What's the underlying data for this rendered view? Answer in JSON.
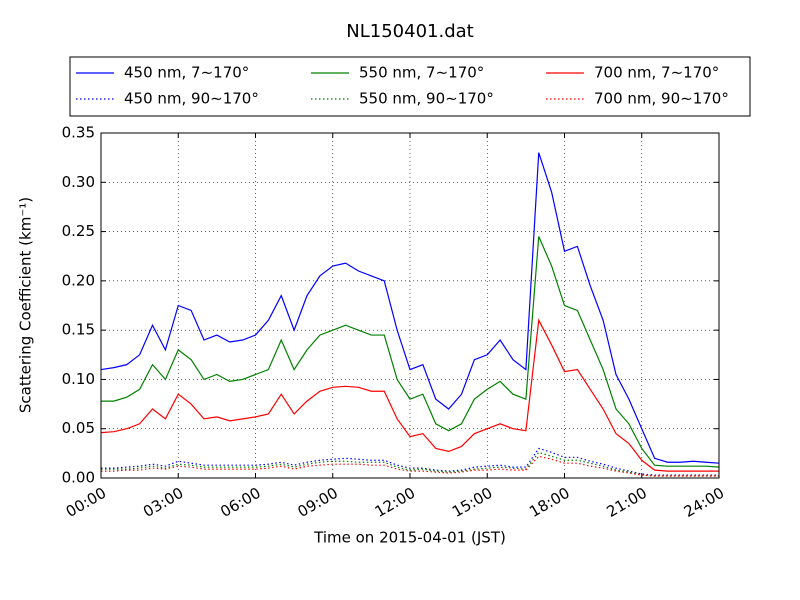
{
  "chart_data": {
    "type": "line",
    "title": "NL150401.dat",
    "xlabel": "Time on 2015-04-01 (JST)",
    "ylabel": "Scattering Coefficient (km⁻¹)",
    "x": [
      0,
      0.5,
      1,
      1.5,
      2,
      2.5,
      3,
      3.5,
      4,
      4.5,
      5,
      5.5,
      6,
      6.5,
      7,
      7.5,
      8,
      8.5,
      9,
      9.5,
      10,
      10.5,
      11,
      11.5,
      12,
      12.5,
      13,
      13.5,
      14,
      14.5,
      15,
      15.5,
      16,
      16.5,
      17,
      17.5,
      18,
      18.5,
      19,
      19.5,
      20,
      20.5,
      21,
      21.5,
      22,
      22.5,
      23,
      23.5,
      24
    ],
    "xlim": [
      0,
      24
    ],
    "xticks": [
      {
        "value": 0,
        "label": "00:00"
      },
      {
        "value": 3,
        "label": "03:00"
      },
      {
        "value": 6,
        "label": "06:00"
      },
      {
        "value": 9,
        "label": "09:00"
      },
      {
        "value": 12,
        "label": "12:00"
      },
      {
        "value": 15,
        "label": "15:00"
      },
      {
        "value": 18,
        "label": "18:00"
      },
      {
        "value": 21,
        "label": "21:00"
      },
      {
        "value": 24,
        "label": "24:00"
      }
    ],
    "ylim": [
      0,
      0.35
    ],
    "yticks": [
      {
        "value": 0,
        "label": "0.00"
      },
      {
        "value": 0.05,
        "label": "0.05"
      },
      {
        "value": 0.1,
        "label": "0.10"
      },
      {
        "value": 0.15,
        "label": "0.15"
      },
      {
        "value": 0.2,
        "label": "0.20"
      },
      {
        "value": 0.25,
        "label": "0.25"
      },
      {
        "value": 0.3,
        "label": "0.30"
      },
      {
        "value": 0.35,
        "label": "0.35"
      }
    ],
    "grid": true,
    "legend_columns": 3,
    "series": [
      {
        "name": "450 nm, 7∼170°",
        "color": "#0000ff",
        "dash": "solid",
        "values": [
          0.11,
          0.112,
          0.115,
          0.125,
          0.155,
          0.13,
          0.175,
          0.17,
          0.14,
          0.145,
          0.138,
          0.14,
          0.145,
          0.16,
          0.185,
          0.15,
          0.185,
          0.205,
          0.215,
          0.218,
          0.21,
          0.205,
          0.2,
          0.15,
          0.11,
          0.115,
          0.08,
          0.07,
          0.085,
          0.12,
          0.125,
          0.14,
          0.12,
          0.11,
          0.33,
          0.29,
          0.23,
          0.235,
          0.195,
          0.16,
          0.105,
          0.08,
          0.05,
          0.02,
          0.016,
          0.016,
          0.017,
          0.016,
          0.015
        ]
      },
      {
        "name": "450 nm, 90∼170°",
        "color": "#0000ff",
        "dash": "dotted",
        "values": [
          0.01,
          0.01,
          0.011,
          0.012,
          0.014,
          0.012,
          0.017,
          0.015,
          0.013,
          0.013,
          0.013,
          0.013,
          0.013,
          0.014,
          0.016,
          0.013,
          0.016,
          0.018,
          0.019,
          0.02,
          0.019,
          0.018,
          0.018,
          0.013,
          0.01,
          0.01,
          0.008,
          0.007,
          0.008,
          0.011,
          0.012,
          0.013,
          0.011,
          0.011,
          0.03,
          0.026,
          0.021,
          0.021,
          0.017,
          0.014,
          0.01,
          0.007,
          0.004,
          0.003,
          0.003,
          0.003,
          0.003,
          0.003,
          0.003
        ]
      },
      {
        "name": "550 nm, 7∼170°",
        "color": "#008000",
        "dash": "solid",
        "values": [
          0.078,
          0.078,
          0.082,
          0.09,
          0.115,
          0.1,
          0.13,
          0.12,
          0.1,
          0.105,
          0.098,
          0.1,
          0.105,
          0.11,
          0.14,
          0.11,
          0.13,
          0.145,
          0.15,
          0.155,
          0.15,
          0.145,
          0.145,
          0.1,
          0.08,
          0.085,
          0.055,
          0.048,
          0.055,
          0.08,
          0.09,
          0.098,
          0.085,
          0.08,
          0.245,
          0.215,
          0.175,
          0.17,
          0.14,
          0.11,
          0.07,
          0.055,
          0.03,
          0.013,
          0.012,
          0.012,
          0.012,
          0.012,
          0.011
        ]
      },
      {
        "name": "550 nm, 90∼170°",
        "color": "#008000",
        "dash": "dotted",
        "values": [
          0.009,
          0.009,
          0.009,
          0.01,
          0.012,
          0.01,
          0.014,
          0.013,
          0.011,
          0.011,
          0.011,
          0.011,
          0.011,
          0.012,
          0.014,
          0.011,
          0.014,
          0.016,
          0.017,
          0.017,
          0.016,
          0.016,
          0.016,
          0.011,
          0.008,
          0.009,
          0.007,
          0.006,
          0.007,
          0.009,
          0.01,
          0.011,
          0.01,
          0.009,
          0.026,
          0.022,
          0.018,
          0.018,
          0.015,
          0.012,
          0.008,
          0.006,
          0.003,
          0.002,
          0.002,
          0.002,
          0.002,
          0.002,
          0.002
        ]
      },
      {
        "name": "700 nm, 7∼170°",
        "color": "#ff0000",
        "dash": "solid",
        "values": [
          0.046,
          0.047,
          0.05,
          0.055,
          0.07,
          0.06,
          0.085,
          0.075,
          0.06,
          0.062,
          0.058,
          0.06,
          0.062,
          0.065,
          0.085,
          0.065,
          0.078,
          0.088,
          0.092,
          0.093,
          0.092,
          0.088,
          0.088,
          0.06,
          0.042,
          0.045,
          0.03,
          0.027,
          0.032,
          0.045,
          0.05,
          0.055,
          0.05,
          0.048,
          0.16,
          0.135,
          0.108,
          0.11,
          0.09,
          0.07,
          0.045,
          0.035,
          0.018,
          0.008,
          0.007,
          0.007,
          0.007,
          0.007,
          0.007
        ]
      },
      {
        "name": "700 nm, 90∼170°",
        "color": "#ff0000",
        "dash": "dotted",
        "values": [
          0.007,
          0.007,
          0.008,
          0.008,
          0.01,
          0.009,
          0.012,
          0.011,
          0.009,
          0.009,
          0.009,
          0.009,
          0.009,
          0.01,
          0.012,
          0.009,
          0.012,
          0.013,
          0.014,
          0.014,
          0.014,
          0.013,
          0.013,
          0.009,
          0.007,
          0.007,
          0.006,
          0.005,
          0.006,
          0.008,
          0.008,
          0.009,
          0.008,
          0.008,
          0.022,
          0.019,
          0.015,
          0.015,
          0.012,
          0.01,
          0.007,
          0.005,
          0.003,
          0.002,
          0.002,
          0.002,
          0.002,
          0.002,
          0.002
        ]
      }
    ]
  }
}
